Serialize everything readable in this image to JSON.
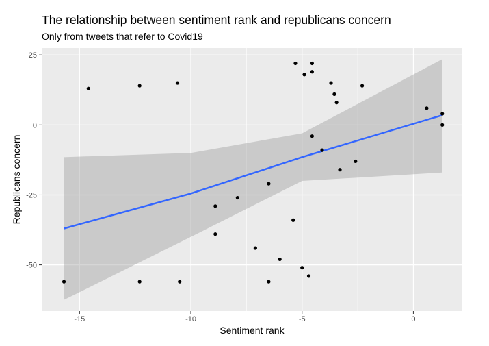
{
  "chart_data": {
    "type": "scatter",
    "title": "The relationship between sentiment rank and republicans concern",
    "subtitle": "Only from tweets that refer to Covid19",
    "xlabel": "Sentiment rank",
    "ylabel": "Republicans concern",
    "xlim": [
      -16.7,
      2.2
    ],
    "ylim": [
      -66.5,
      27.5
    ],
    "x_ticks": [
      -15,
      -10,
      -5,
      0
    ],
    "x_tick_labels": [
      "-15",
      "-10",
      "-5",
      "0"
    ],
    "y_ticks": [
      25,
      0,
      -25,
      -50
    ],
    "y_tick_labels": [
      "25",
      "0",
      "-25",
      "-50"
    ],
    "grid": true,
    "background": "#ebebeb",
    "point_color": "#000000",
    "points": [
      {
        "x": -15.7,
        "y": -56
      },
      {
        "x": -14.6,
        "y": 13
      },
      {
        "x": -12.3,
        "y": 14
      },
      {
        "x": -12.3,
        "y": -56
      },
      {
        "x": -10.6,
        "y": 15
      },
      {
        "x": -10.5,
        "y": -56
      },
      {
        "x": -8.9,
        "y": -29
      },
      {
        "x": -8.9,
        "y": -39
      },
      {
        "x": -7.9,
        "y": -26
      },
      {
        "x": -7.1,
        "y": -44
      },
      {
        "x": -6.5,
        "y": -21
      },
      {
        "x": -6.5,
        "y": -56
      },
      {
        "x": -6.0,
        "y": -48
      },
      {
        "x": -5.4,
        "y": -34
      },
      {
        "x": -5.3,
        "y": 22
      },
      {
        "x": -5.0,
        "y": -51
      },
      {
        "x": -4.9,
        "y": 18
      },
      {
        "x": -4.7,
        "y": -54
      },
      {
        "x": -4.55,
        "y": 22
      },
      {
        "x": -4.55,
        "y": 19
      },
      {
        "x": -4.55,
        "y": -4
      },
      {
        "x": -4.1,
        "y": -9
      },
      {
        "x": -3.7,
        "y": 15
      },
      {
        "x": -3.55,
        "y": 11
      },
      {
        "x": -3.45,
        "y": 8
      },
      {
        "x": -3.3,
        "y": -16
      },
      {
        "x": -2.6,
        "y": -13
      },
      {
        "x": -2.3,
        "y": 14
      },
      {
        "x": 0.6,
        "y": 6
      },
      {
        "x": 1.3,
        "y": 4
      },
      {
        "x": 1.3,
        "y": 0
      }
    ],
    "fit": {
      "method": "linear",
      "color": "#3366ff",
      "band_color": "#999999",
      "x": [
        -15.7,
        -10,
        -5,
        1.3
      ],
      "y": [
        -37,
        -24.5,
        -11.5,
        3.5
      ],
      "lower": [
        -62.5,
        -40,
        -20,
        -17
      ],
      "upper": [
        -11.5,
        -10,
        -3,
        23.5
      ]
    }
  }
}
